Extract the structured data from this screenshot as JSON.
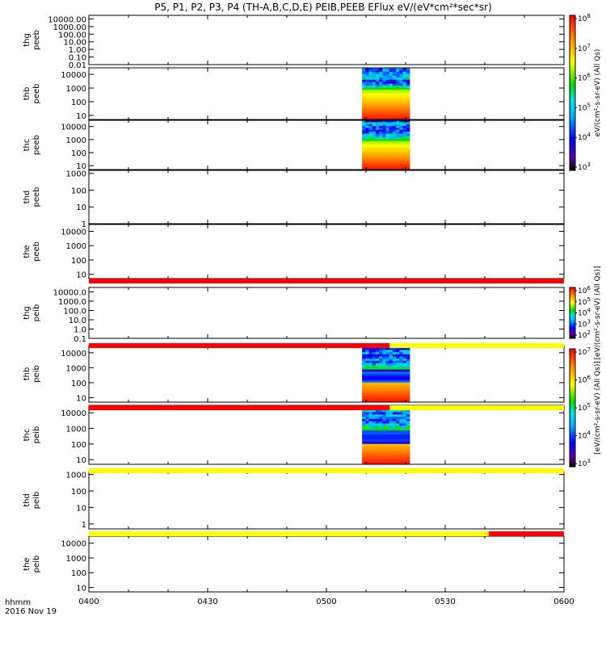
{
  "title": "P5, P1, P2, P3, P4 (TH-A,B,C,D,E) PEIB,PEEB EFlux eV/(eV*cm²*sec*sr)",
  "chart_data": {
    "type": "heatmap",
    "title": "P5, P1, P2, P3, P4 (TH-A,B,C,D,E) PEIB,PEEB EFlux eV/(eV*cm²*sec*sr)",
    "x_axis": {
      "label_line1": "hhmm",
      "label_line2": "2016 Nov 19",
      "range": [
        "04:00",
        "06:00"
      ],
      "tick_values_min": [
        0,
        30,
        60,
        90,
        120
      ],
      "tick_labels": [
        "0400",
        "0430",
        "0500",
        "0530",
        "0600"
      ]
    },
    "panels": [
      {
        "ylabel": [
          "thg",
          "peeb"
        ],
        "yscale": "log",
        "ylim": [
          0.01,
          30000
        ],
        "ytick_values": [
          10000,
          1000,
          100,
          10,
          1,
          0.1,
          0.01
        ],
        "ytick_labels": [
          "10000.00",
          "1000.00",
          "100.00",
          "10.00",
          "1.00",
          "0.10",
          "0.01"
        ],
        "data": "none"
      },
      {
        "ylabel": [
          "thb",
          "peeb"
        ],
        "yscale": "log",
        "ylim": [
          5,
          30000
        ],
        "ytick_values": [
          10000,
          1000,
          100,
          10
        ],
        "ytick_labels": [
          "10000",
          "1000",
          "100",
          "10"
        ],
        "data": "spectrogram",
        "data_time_min": [
          69,
          81
        ]
      },
      {
        "ylabel": [
          "thc",
          "peeb"
        ],
        "yscale": "log",
        "ylim": [
          5,
          30000
        ],
        "ytick_values": [
          10000,
          1000,
          100,
          10
        ],
        "ytick_labels": [
          "10000",
          "1000",
          "100",
          "10"
        ],
        "data": "spectrogram",
        "data_time_min": [
          69,
          81
        ]
      },
      {
        "ylabel": [
          "thd",
          "peeb"
        ],
        "yscale": "log",
        "ylim": [
          1,
          1500
        ],
        "ytick_values": [
          1000,
          100,
          10,
          1
        ],
        "ytick_labels": [
          "1000",
          "100",
          "10",
          "1"
        ],
        "data": "none"
      },
      {
        "ylabel": [
          "the",
          "peeb"
        ],
        "yscale": "log",
        "ylim": [
          5,
          30000
        ],
        "ytick_values": [
          10000,
          1000,
          100,
          10
        ],
        "ytick_labels": [
          "10000",
          "1000",
          "100",
          "10"
        ],
        "data": "none"
      },
      {
        "ylabel": [
          "thg",
          "peib"
        ],
        "yscale": "log",
        "ylim": [
          0.1,
          30000
        ],
        "ytick_values": [
          10000,
          1000,
          100,
          10,
          1,
          0.1
        ],
        "ytick_labels": [
          "10000.0",
          "1000.0",
          "100.0",
          "10.0",
          "1.0",
          "0.1"
        ],
        "data": "none"
      },
      {
        "ylabel": [
          "thb",
          "peib"
        ],
        "yscale": "log",
        "ylim": [
          5,
          30000
        ],
        "ytick_values": [
          10000,
          1000,
          100,
          10
        ],
        "ytick_labels": [
          "10000",
          "1000",
          "100",
          "10"
        ],
        "data": "spectrogram",
        "data_time_min": [
          69,
          81
        ]
      },
      {
        "ylabel": [
          "thc",
          "peib"
        ],
        "yscale": "log",
        "ylim": [
          5,
          30000
        ],
        "ytick_values": [
          10000,
          1000,
          100,
          10
        ],
        "ytick_labels": [
          "10000",
          "1000",
          "100",
          "10"
        ],
        "data": "spectrogram",
        "data_time_min": [
          69,
          81
        ]
      },
      {
        "ylabel": [
          "thd",
          "peib"
        ],
        "yscale": "log",
        "ylim": [
          0.5,
          1500
        ],
        "ytick_values": [
          1000,
          100,
          10,
          1
        ],
        "ytick_labels": [
          "1000",
          "100",
          "10",
          "1"
        ],
        "data": "none"
      },
      {
        "ylabel": [
          "the",
          "peib"
        ],
        "yscale": "log",
        "ylim": [
          5,
          30000
        ],
        "ytick_values": [
          10000,
          1000,
          100,
          10
        ],
        "ytick_labels": [
          "10000",
          "1000",
          "100",
          "10"
        ],
        "data": "none"
      }
    ],
    "status_bars": [
      {
        "after_panel": 4,
        "segments": [
          {
            "from_min": 0,
            "to_min": 120,
            "color": "#ff0000"
          }
        ]
      },
      {
        "after_panel": 5,
        "segments": [
          {
            "from_min": 0,
            "to_min": 76,
            "color": "#ff0000"
          },
          {
            "from_min": 76,
            "to_min": 120,
            "color": "#ffff00"
          }
        ]
      },
      {
        "after_panel": 6,
        "segments": [
          {
            "from_min": 0,
            "to_min": 76,
            "color": "#ff0000"
          },
          {
            "from_min": 76,
            "to_min": 120,
            "color": "#ffff00"
          }
        ]
      },
      {
        "after_panel": 7,
        "segments": [
          {
            "from_min": 0,
            "to_min": 120,
            "color": "#ffff00"
          }
        ]
      },
      {
        "after_panel": 8,
        "segments": [
          {
            "from_min": 0,
            "to_min": 101,
            "color": "#ffff00"
          },
          {
            "from_min": 101,
            "to_min": 120,
            "color": "#ff0000"
          }
        ]
      }
    ],
    "colorbars": [
      {
        "exponents": [
          "8",
          "7",
          "6",
          "5",
          "4",
          "3"
        ],
        "label": "eV/(cm²-s-sr-eV) (All Qs)"
      },
      {
        "exponents": [
          "6",
          "5",
          "4",
          "3",
          "2"
        ],
        "label": "[eV/(cm²-s-sr-eV) (All Qs)]"
      },
      {
        "exponents": [
          "7",
          "6",
          "5",
          "4",
          "3"
        ],
        "label": "[eV/(cm²-s-sr-eV) (All Qs)]"
      }
    ],
    "colorbar_labels": {
      "peeb": "[eV/(cm²-s-sr-eV) (All Qs)]",
      "peib": "[eV/(cm²-s-sr-eV) (All Qs)]"
    },
    "colors": {
      "background": "#ffffff",
      "axes": "#000000",
      "red": "#ff0000",
      "yellow": "#ffff00"
    },
    "grid": false
  }
}
